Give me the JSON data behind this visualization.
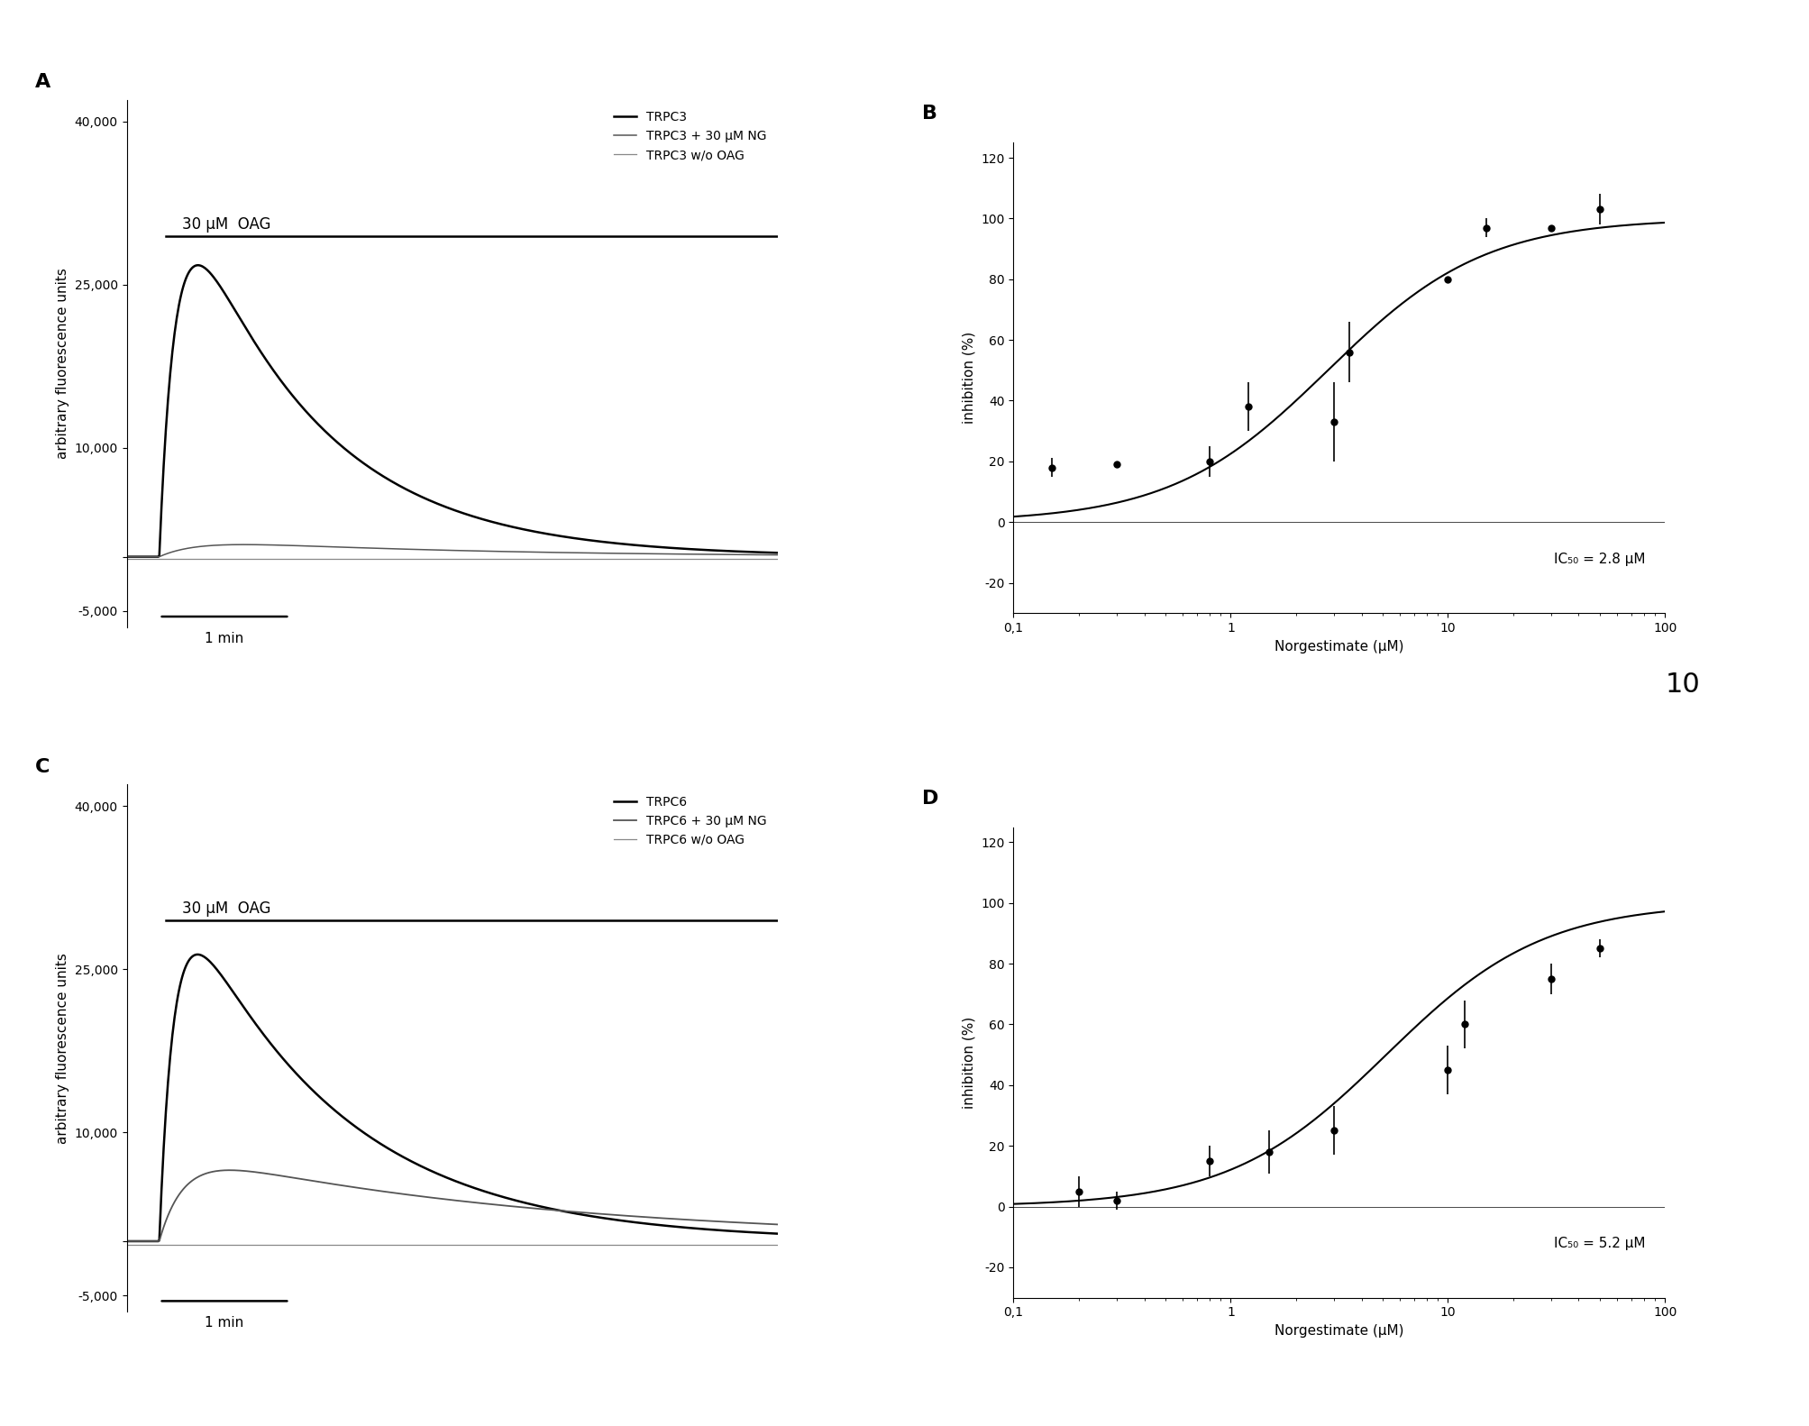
{
  "panel_A": {
    "label": "A",
    "ylabel": "arbitrary fluorescence units",
    "oag_label": "30 μM  OAG",
    "legend": [
      "TRPC3",
      "TRPC3 + 30 μM NG",
      "TRPC3 w/o OAG"
    ],
    "ylim": [
      -5000,
      40000
    ],
    "yticks": [
      -5000,
      0,
      10000,
      25000,
      40000
    ],
    "ytick_labels": [
      "-5,000",
      "",
      "10,000",
      "25,000",
      "40,000"
    ],
    "scale_bar_label": "1 min"
  },
  "panel_B": {
    "label": "B",
    "xlabel": "Norgestimate (μM)",
    "ylabel": "inhibition (%)",
    "ic50_text": "IC₅₀ = 2.8 μM",
    "xlim": [
      0.1,
      100
    ],
    "ylim": [
      -30,
      120
    ],
    "yticks": [
      -20,
      0,
      20,
      40,
      60,
      80,
      100,
      120
    ],
    "ic50": 2.8,
    "hill": 1.2,
    "data_x": [
      0.15,
      0.3,
      0.8,
      1.2,
      3.0,
      3.5,
      10.0,
      15.0,
      30.0,
      50.0
    ],
    "data_y": [
      18,
      19,
      20,
      38,
      33,
      56,
      80,
      97,
      97,
      103
    ],
    "data_yerr": [
      3,
      0,
      5,
      8,
      13,
      10,
      0,
      3,
      0,
      5
    ]
  },
  "panel_C": {
    "label": "C",
    "ylabel": "arbitrary fluorescence units",
    "oag_label": "30 μM  OAG",
    "legend": [
      "TRPC6",
      "TRPC6 + 30 μM NG",
      "TRPC6 w/o OAG"
    ],
    "ylim": [
      -5000,
      40000
    ],
    "yticks": [
      -5000,
      0,
      10000,
      25000,
      40000
    ],
    "ytick_labels": [
      "-5,000",
      "",
      "10,000",
      "25,000",
      "40,000"
    ],
    "scale_bar_label": "1 min"
  },
  "panel_D": {
    "label": "D",
    "xlabel": "Norgestimate (μM)",
    "ylabel": "inhibition (%)",
    "ic50_text": "IC₅₀ = 5.2 μM",
    "xlim": [
      0.1,
      100
    ],
    "ylim": [
      -30,
      120
    ],
    "yticks": [
      -20,
      0,
      20,
      40,
      60,
      80,
      100,
      120
    ],
    "ic50": 5.2,
    "hill": 1.2,
    "data_x": [
      0.2,
      0.3,
      0.8,
      1.5,
      3.0,
      10.0,
      12.0,
      30.0,
      50.0
    ],
    "data_y": [
      5,
      2,
      15,
      18,
      25,
      45,
      60,
      75,
      85
    ],
    "data_yerr": [
      5,
      3,
      5,
      7,
      8,
      8,
      8,
      5,
      3
    ]
  },
  "page_number": "10",
  "bg_color": "#ffffff"
}
